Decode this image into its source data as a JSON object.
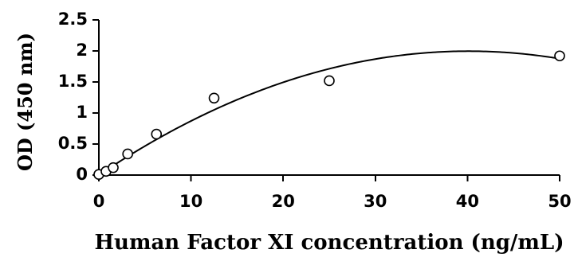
{
  "chart_data": {
    "type": "scatter",
    "title": "",
    "xlabel": "Human Factor XI concentration (ng/mL)",
    "ylabel": "OD (450 nm)",
    "xlim": [
      0,
      50
    ],
    "ylim": [
      0,
      2.5
    ],
    "x_ticks": [
      "0",
      "10",
      "20",
      "30",
      "40",
      "50"
    ],
    "y_ticks": [
      "0",
      "0.5",
      "1",
      "1.5",
      "2",
      "2.5"
    ],
    "grid": false,
    "legend": "none",
    "series": [
      {
        "marker": "open-circle",
        "x": [
          0,
          0.78,
          1.56,
          3.13,
          6.25,
          12.5,
          25,
          50
        ],
        "y": [
          0.01,
          0.06,
          0.12,
          0.34,
          0.66,
          1.24,
          1.52,
          1.92
        ]
      }
    ],
    "trendline": {
      "type": "polynomial",
      "order": 2,
      "coefficients": [
        -0.00124,
        0.0995,
        0.0
      ]
    }
  }
}
